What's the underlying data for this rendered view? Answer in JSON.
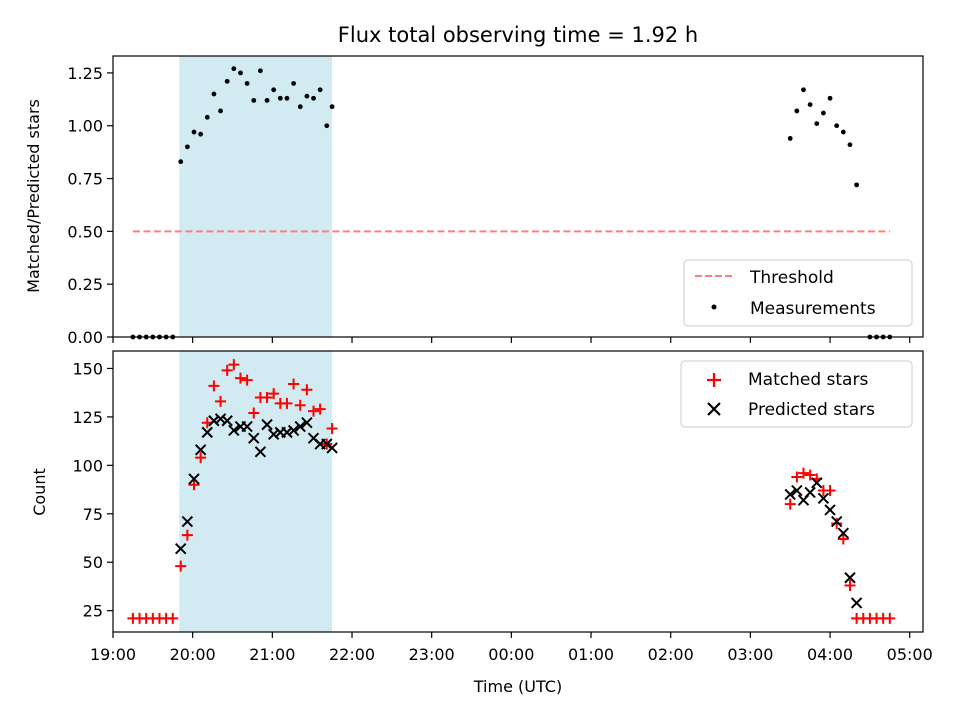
{
  "chart_data": [
    {
      "type": "scatter",
      "title": "Flux total observing time = 1.92 h",
      "xlabel": "",
      "ylabel": "Matched/Predicted stars",
      "xlim": [
        "19:00",
        "05:10"
      ],
      "ylim": [
        0,
        1.33
      ],
      "yticks": [
        0.0,
        0.25,
        0.5,
        0.75,
        1.0,
        1.25
      ],
      "ytick_labels": [
        "0.00",
        "0.25",
        "0.50",
        "0.75",
        "1.00",
        "1.25"
      ],
      "shaded_interval": [
        "19:50",
        "21:45"
      ],
      "threshold": {
        "name": "Threshold",
        "value": 0.5,
        "x_range": [
          "19:15",
          "04:45"
        ],
        "color": "#ff7f7f"
      },
      "series": [
        {
          "name": "Measurements",
          "color": "#000000",
          "marker": "dot",
          "x": [
            "19:15",
            "19:20",
            "19:25",
            "19:30",
            "19:35",
            "19:40",
            "19:45",
            "19:51",
            "19:56",
            "20:01",
            "20:06",
            "20:11",
            "20:16",
            "20:21",
            "20:26",
            "20:31",
            "20:36",
            "20:41",
            "20:46",
            "20:51",
            "20:56",
            "21:01",
            "21:06",
            "21:11",
            "21:16",
            "21:21",
            "21:26",
            "21:31",
            "21:36",
            "21:41",
            "21:45",
            "03:30",
            "03:35",
            "03:40",
            "03:45",
            "03:50",
            "03:55",
            "04:00",
            "04:05",
            "04:10",
            "04:15",
            "04:20",
            "04:30",
            "04:35",
            "04:40",
            "04:45"
          ],
          "y": [
            0,
            0,
            0,
            0,
            0,
            0,
            0,
            0.83,
            0.9,
            0.97,
            0.96,
            1.04,
            1.15,
            1.07,
            1.21,
            1.27,
            1.25,
            1.2,
            1.12,
            1.26,
            1.12,
            1.17,
            1.13,
            1.13,
            1.2,
            1.09,
            1.14,
            1.13,
            1.17,
            1.0,
            1.09,
            0.94,
            1.07,
            1.17,
            1.1,
            1.01,
            1.06,
            1.13,
            1.0,
            0.97,
            0.91,
            0.72,
            0,
            0,
            0,
            0
          ]
        }
      ],
      "legend": {
        "position": "lower-right",
        "entries": [
          "Threshold",
          "Measurements"
        ]
      }
    },
    {
      "type": "scatter",
      "title": "",
      "xlabel": "Time (UTC)",
      "ylabel": "Count",
      "xlim": [
        "19:00",
        "05:10"
      ],
      "ylim": [
        14,
        159
      ],
      "yticks": [
        25,
        50,
        75,
        100,
        125,
        150
      ],
      "ytick_labels": [
        "25",
        "50",
        "75",
        "100",
        "125",
        "150"
      ],
      "xticks": [
        "19:00",
        "20:00",
        "21:00",
        "22:00",
        "23:00",
        "00:00",
        "01:00",
        "02:00",
        "03:00",
        "04:00",
        "05:00"
      ],
      "shaded_interval": [
        "19:50",
        "21:45"
      ],
      "series": [
        {
          "name": "Matched stars",
          "color": "#ff0000",
          "marker": "plus",
          "x": [
            "19:15",
            "19:20",
            "19:25",
            "19:30",
            "19:35",
            "19:40",
            "19:45",
            "19:51",
            "19:56",
            "20:01",
            "20:06",
            "20:11",
            "20:16",
            "20:21",
            "20:26",
            "20:31",
            "20:36",
            "20:41",
            "20:46",
            "20:51",
            "20:56",
            "21:01",
            "21:06",
            "21:11",
            "21:16",
            "21:21",
            "21:26",
            "21:31",
            "21:36",
            "21:41",
            "21:45",
            "03:30",
            "03:35",
            "03:40",
            "03:45",
            "03:50",
            "03:55",
            "04:00",
            "04:05",
            "04:10",
            "04:15",
            "04:20",
            "04:25",
            "04:30",
            "04:35",
            "04:40",
            "04:45"
          ],
          "y": [
            21,
            21,
            21,
            21,
            21,
            21,
            21,
            48,
            64,
            90,
            104,
            122,
            141,
            133,
            149,
            152,
            145,
            144,
            127,
            135,
            135,
            137,
            132,
            132,
            142,
            131,
            139,
            128,
            129,
            111,
            119,
            80,
            94,
            96,
            95,
            93,
            87,
            87,
            70,
            62,
            38,
            21,
            21,
            21,
            21,
            21,
            21
          ]
        },
        {
          "name": "Predicted stars",
          "color": "#000000",
          "marker": "x",
          "x": [
            "19:51",
            "19:56",
            "20:01",
            "20:06",
            "20:11",
            "20:16",
            "20:21",
            "20:26",
            "20:31",
            "20:36",
            "20:41",
            "20:46",
            "20:51",
            "20:56",
            "21:01",
            "21:06",
            "21:11",
            "21:16",
            "21:21",
            "21:26",
            "21:31",
            "21:36",
            "21:41",
            "21:45",
            "03:30",
            "03:35",
            "03:40",
            "03:45",
            "03:50",
            "03:55",
            "04:00",
            "04:05",
            "04:10",
            "04:15",
            "04:20"
          ],
          "y": [
            57,
            71,
            93,
            108,
            117,
            123,
            124,
            123,
            118,
            120,
            120,
            114,
            107,
            121,
            116,
            117,
            117,
            118,
            120,
            122,
            114,
            111,
            111,
            109,
            85,
            87,
            82,
            86,
            91,
            83,
            77,
            71,
            65,
            42,
            29
          ]
        }
      ],
      "legend": {
        "position": "upper-right",
        "entries": [
          "Matched stars",
          "Predicted stars"
        ]
      }
    }
  ]
}
